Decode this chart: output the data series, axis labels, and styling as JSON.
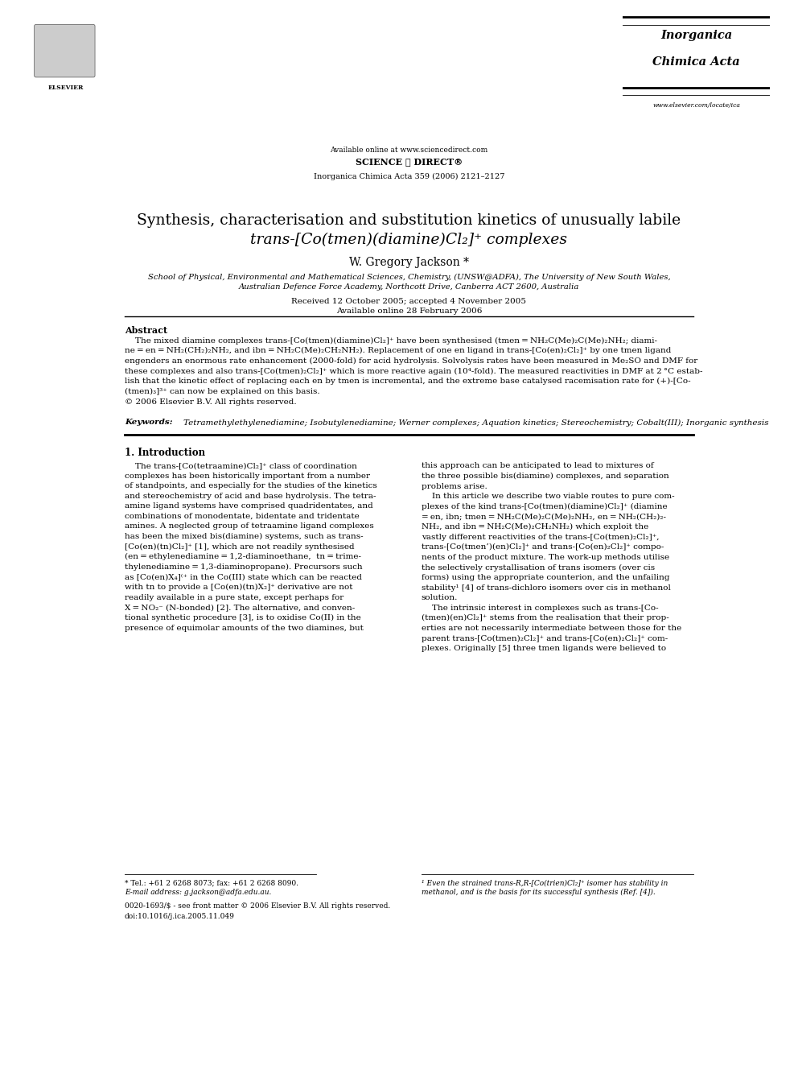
{
  "bg_color": "#ffffff",
  "page_width": 9.92,
  "page_height": 13.23,
  "header": {
    "available_online": "Available online at www.sciencedirect.com",
    "sciencedirect": "SCIENCE ⓓ DIRECT®",
    "journal_ref": "Inorganica Chimica Acta 359 (2006) 2121–2127",
    "journal_name_line1": "Inorganica",
    "journal_name_line2": "Chimica Acta",
    "website": "www.elsevier.com/locate/ica"
  },
  "title_line1": "Synthesis, characterisation and substitution kinetics of unusually labile",
  "title_line2": "trans-[Co(tmen)(diamine)Cl₂]⁺ complexes",
  "author": "W. Gregory Jackson *",
  "affiliation_line1": "School of Physical, Environmental and Mathematical Sciences, Chemistry, (UNSW@ADFA), The University of New South Wales,",
  "affiliation_line2": "Australian Defence Force Academy, Northcott Drive, Canberra ACT 2600, Australia",
  "received": "Received 12 October 2005; accepted 4 November 2005",
  "available": "Available online 28 February 2006",
  "abstract_title": "Abstract",
  "keywords_label": "Keywords:",
  "keywords_text": "Tetramethylethylenediamine; Isobutylenediamine; Werner complexes; Aquation kinetics; Stereochemistry; Cobalt(III); Inorganic synthesis",
  "section1_title": "1. Introduction",
  "footnote_star": "* Tel.: +61 2 6268 8073; fax: +61 2 6268 8090.",
  "footnote_email": "E-mail address: g.jackson@adfa.edu.au.",
  "footnote1": "¹ Even the strained trans-R,R-[Co(trien)Cl₂]⁺ isomer has stability in",
  "footnote1b": "methanol, and is the basis for its successful synthesis (Ref. [4]).",
  "footer_issn": "0020-1693/$ - see front matter © 2006 Elsevier B.V. All rights reserved.",
  "footer_doi": "doi:10.1016/j.ica.2005.11.049"
}
